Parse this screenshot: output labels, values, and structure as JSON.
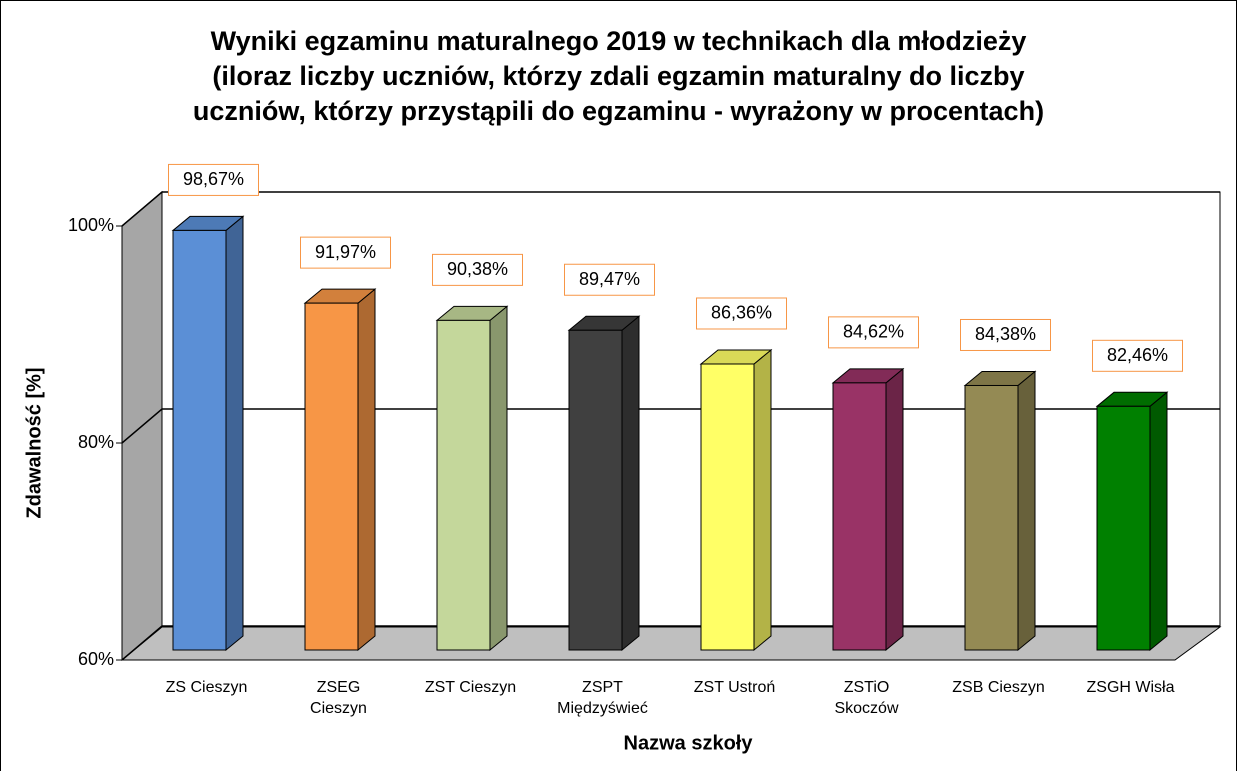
{
  "chart_data": {
    "type": "bar3d",
    "title": "Wyniki egzaminu maturalnego 2019 w technikach dla młodzieży\n(iloraz liczby uczniów, którzy zdali egzamin maturalny do liczby\nuczniów, którzy przystąpili do egzaminu - wyrażony w procentach)",
    "x_label": "Nazwa szkoły",
    "y_label": "Zdawalność [%]",
    "categories": [
      "ZS Cieszyn",
      "ZSEG\nCieszyn",
      "ZST Cieszyn",
      "ZSPT\nMiędzyświeć",
      "ZST Ustroń",
      "ZSTiO\nSkoczów",
      "ZSB Cieszyn",
      "ZSGH Wisła"
    ],
    "values": [
      98.67,
      91.97,
      90.38,
      89.47,
      86.36,
      84.62,
      84.38,
      82.46
    ],
    "value_labels": [
      "98,67%",
      "91,97%",
      "90,38%",
      "89,47%",
      "86,36%",
      "84,62%",
      "84,38%",
      "82,46%"
    ],
    "colors": [
      "#5b8fd6",
      "#f79646",
      "#c4d79b",
      "#404040",
      "#ffff66",
      "#993366",
      "#948a54",
      "#008000"
    ],
    "ylim": [
      60,
      100
    ],
    "yticks": [
      {
        "value": 60,
        "label": "60%"
      },
      {
        "value": 80,
        "label": "80%"
      },
      {
        "value": 100,
        "label": "100%"
      }
    ],
    "grid": true
  }
}
